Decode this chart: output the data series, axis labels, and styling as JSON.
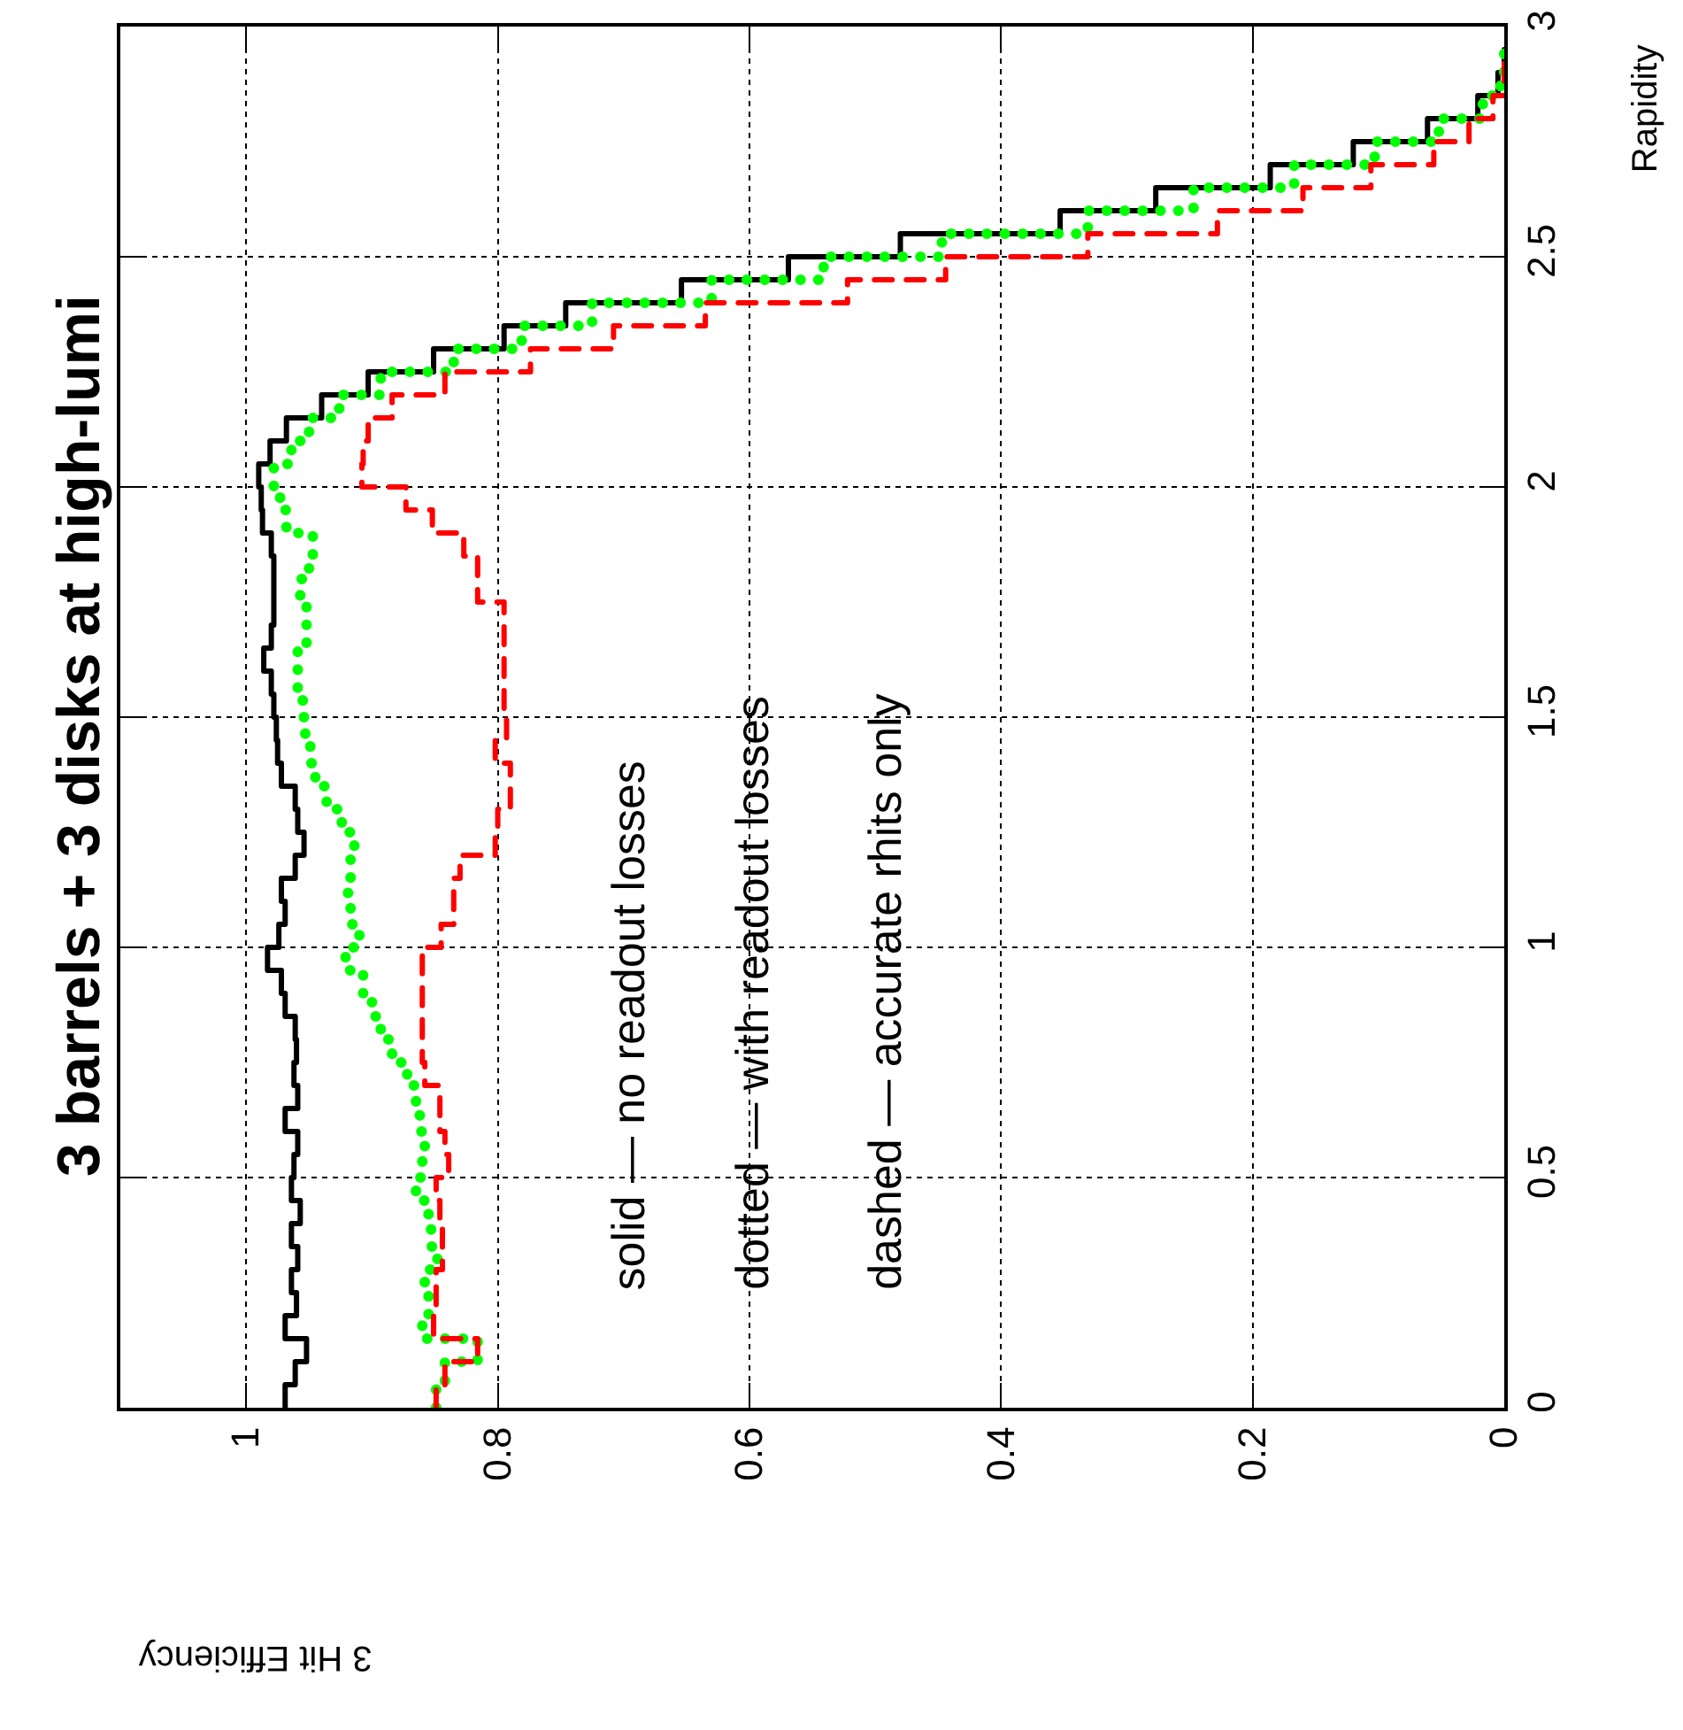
{
  "chart_data": {
    "type": "step",
    "title": "3 barrels + 3 disks at high-lumi",
    "xlabel": "3 Hit Efficiency",
    "ylabel": "Rapidity",
    "series": [
      {
        "color": "#000000",
        "line_style": "solid",
        "x": [
          0.969,
          0.961,
          0.952,
          0.969,
          0.96,
          0.964,
          0.959,
          0.964,
          0.957,
          0.964,
          0.962,
          0.959,
          0.969,
          0.959,
          0.962,
          0.96,
          0.961,
          0.969,
          0.972,
          0.983,
          0.974,
          0.969,
          0.972,
          0.961,
          0.954,
          0.959,
          0.961,
          0.972,
          0.975,
          0.976,
          0.978,
          0.98,
          0.986,
          0.98,
          0.978,
          0.978,
          0.978,
          0.98,
          0.987,
          0.988,
          0.99,
          0.981,
          0.968,
          0.94,
          0.903,
          0.851,
          0.795,
          0.746,
          0.654,
          0.569,
          0.48,
          0.353,
          0.277,
          0.186,
          0.12,
          0.061,
          0.021,
          0.005,
          0,
          0
        ],
        "values": [
          0,
          0.05,
          0.1,
          0.15,
          0.2,
          0.25,
          0.3,
          0.35,
          0.4,
          0.45,
          0.5,
          0.55,
          0.6,
          0.65,
          0.7,
          0.75,
          0.8,
          0.85,
          0.9,
          0.95,
          1,
          1.05,
          1.1,
          1.15,
          1.2,
          1.25,
          1.3,
          1.35,
          1.4,
          1.45,
          1.5,
          1.55,
          1.6,
          1.65,
          1.7,
          1.75,
          1.8,
          1.85,
          1.9,
          1.95,
          2,
          2.05,
          2.1,
          2.15,
          2.2,
          2.25,
          2.3,
          2.35,
          2.4,
          2.45,
          2.5,
          2.55,
          2.6,
          2.65,
          2.7,
          2.75,
          2.8,
          2.85,
          2.9,
          2.95
        ]
      },
      {
        "color": "#00ff00",
        "line_style": "dotted",
        "x": [
          0.849,
          0.842,
          0.816,
          0.86,
          0.855,
          0.858,
          0.848,
          0.853,
          0.855,
          0.865,
          0.86,
          0.858,
          0.862,
          0.865,
          0.872,
          0.884,
          0.893,
          0.9,
          0.907,
          0.921,
          0.91,
          0.917,
          0.919,
          0.917,
          0.914,
          0.924,
          0.936,
          0.945,
          0.949,
          0.953,
          0.955,
          0.959,
          0.959,
          0.952,
          0.952,
          0.957,
          0.95,
          0.947,
          0.968,
          0.973,
          0.978,
          0.964,
          0.95,
          0.926,
          0.893,
          0.835,
          0.781,
          0.725,
          0.63,
          0.541,
          0.447,
          0.331,
          0.247,
          0.167,
          0.103,
          0.052,
          0.017,
          0.003,
          0,
          0
        ],
        "values": [
          0,
          0.05,
          0.1,
          0.15,
          0.2,
          0.25,
          0.3,
          0.35,
          0.4,
          0.45,
          0.5,
          0.55,
          0.6,
          0.65,
          0.7,
          0.75,
          0.8,
          0.85,
          0.9,
          0.95,
          1,
          1.05,
          1.1,
          1.15,
          1.2,
          1.25,
          1.3,
          1.35,
          1.4,
          1.45,
          1.5,
          1.55,
          1.6,
          1.65,
          1.7,
          1.75,
          1.8,
          1.85,
          1.9,
          1.95,
          2,
          2.05,
          2.1,
          2.15,
          2.2,
          2.25,
          2.3,
          2.35,
          2.4,
          2.45,
          2.5,
          2.55,
          2.6,
          2.65,
          2.7,
          2.75,
          2.8,
          2.85,
          2.9,
          2.95
        ]
      },
      {
        "color": "#ff0000",
        "line_style": "dashed",
        "x": [
          0.849,
          0.842,
          0.816,
          0.851,
          0.849,
          0.849,
          0.844,
          0.844,
          0.846,
          0.849,
          0.839,
          0.842,
          0.846,
          0.846,
          0.858,
          0.86,
          0.86,
          0.86,
          0.86,
          0.86,
          0.845,
          0.835,
          0.835,
          0.83,
          0.802,
          0.8,
          0.79,
          0.79,
          0.802,
          0.793,
          0.795,
          0.795,
          0.795,
          0.795,
          0.795,
          0.816,
          0.816,
          0.827,
          0.852,
          0.873,
          0.908,
          0.907,
          0.903,
          0.884,
          0.842,
          0.774,
          0.708,
          0.635,
          0.522,
          0.444,
          0.331,
          0.228,
          0.16,
          0.106,
          0.056,
          0.028,
          0.009,
          0,
          0,
          0
        ],
        "values": [
          0,
          0.05,
          0.1,
          0.15,
          0.2,
          0.25,
          0.3,
          0.35,
          0.4,
          0.45,
          0.5,
          0.55,
          0.6,
          0.65,
          0.7,
          0.75,
          0.8,
          0.85,
          0.9,
          0.95,
          1,
          1.05,
          1.1,
          1.15,
          1.2,
          1.25,
          1.3,
          1.35,
          1.4,
          1.45,
          1.5,
          1.55,
          1.6,
          1.65,
          1.7,
          1.75,
          1.8,
          1.85,
          1.9,
          1.95,
          2,
          2.05,
          2.1,
          2.15,
          2.2,
          2.25,
          2.3,
          2.35,
          2.4,
          2.45,
          2.5,
          2.55,
          2.6,
          2.65,
          2.7,
          2.75,
          2.8,
          2.85,
          2.9,
          2.95
        ]
      }
    ],
    "annotations": [
      "solid — no readout losses",
      "dotted — with readout losses",
      "dashed — accurate rhits only"
    ],
    "xlim": [
      1.1,
      0
    ],
    "xticks": [
      1,
      0.8,
      0.6,
      0.4,
      0.2,
      0
    ],
    "ylim": [
      0,
      3
    ],
    "yticks": [
      0,
      0.5,
      1,
      1.5,
      2,
      2.5,
      3
    ],
    "grid": true
  }
}
